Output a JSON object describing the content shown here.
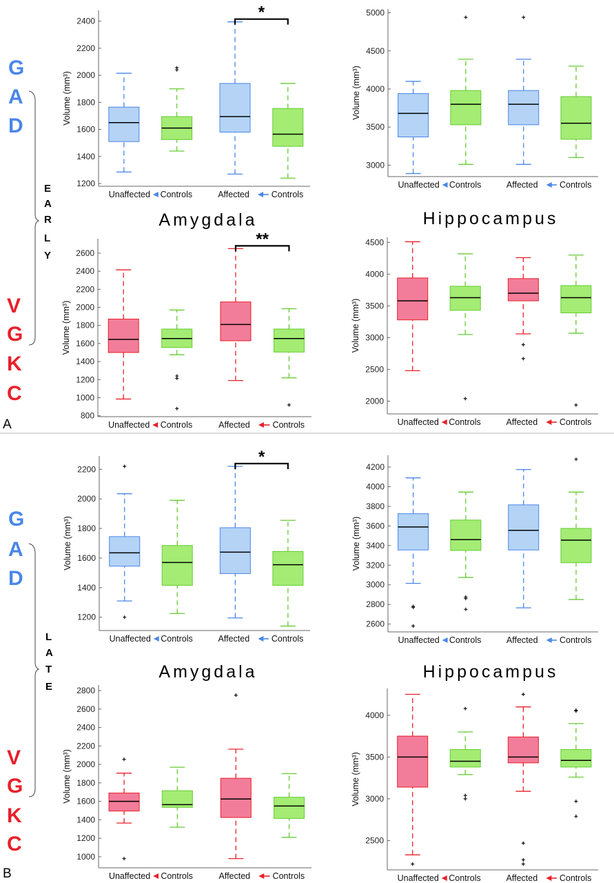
{
  "colors": {
    "gad": "#4a86e8",
    "vgkc": "#e8202a",
    "blue_fill": "#b4d3f5",
    "blue_stroke": "#4a86e8",
    "green_fill": "#a4ec74",
    "green_stroke": "#66cc33",
    "red_fill": "#f27d9a",
    "red_stroke": "#e8202a"
  },
  "labels": {
    "gad_letters": [
      "G",
      "A",
      "D"
    ],
    "vgkc_letters": [
      "V",
      "G",
      "K",
      "C"
    ],
    "early_letters": [
      "E",
      "A",
      "R",
      "L",
      "Y"
    ],
    "late_letters": [
      "L",
      "A",
      "T",
      "E"
    ],
    "panel_a": "A",
    "panel_b": "B",
    "amygdala": "Amygdala",
    "hippocampus": "Hippocampus"
  },
  "chart_data": [
    {
      "id": "early-gad-amygdala",
      "type": "box",
      "ylabel": "Volume (mm³)",
      "ylim": [
        1180,
        2480
      ],
      "yticks": [
        1200,
        1400,
        1600,
        1800,
        2000,
        2200,
        2400
      ],
      "categories": [
        "Unaffected",
        "Controls",
        "Affected",
        "Controls"
      ],
      "arrow_color": "gad",
      "boxes": [
        {
          "min": 1285,
          "q1": 1510,
          "median": 1650,
          "q3": 1765,
          "max": 2015,
          "outliers": [],
          "color": "blue"
        },
        {
          "min": 1440,
          "q1": 1525,
          "median": 1610,
          "q3": 1695,
          "max": 1900,
          "outliers": [
            2040,
            2055
          ],
          "color": "green"
        },
        {
          "min": 1270,
          "q1": 1580,
          "median": 1695,
          "q3": 1940,
          "max": 2395,
          "outliers": [],
          "color": "blue"
        },
        {
          "min": 1240,
          "q1": 1475,
          "median": 1565,
          "q3": 1755,
          "max": 1940,
          "outliers": [],
          "color": "green"
        }
      ],
      "significance": "*"
    },
    {
      "id": "early-gad-hippocampus",
      "type": "box",
      "ylabel": "Volume (mm³)",
      "ylim": [
        2850,
        5050
      ],
      "yticks": [
        3000,
        3500,
        4000,
        4500,
        5000
      ],
      "categories": [
        "Unaffected",
        "Controls",
        "Affected",
        "Controls"
      ],
      "arrow_color": "gad",
      "boxes": [
        {
          "min": 2890,
          "q1": 3370,
          "median": 3680,
          "q3": 3940,
          "max": 4100,
          "outliers": [],
          "color": "blue"
        },
        {
          "min": 3010,
          "q1": 3530,
          "median": 3800,
          "q3": 3980,
          "max": 4390,
          "outliers": [
            4940
          ],
          "color": "green"
        },
        {
          "min": 3010,
          "q1": 3530,
          "median": 3800,
          "q3": 3980,
          "max": 4390,
          "outliers": [
            4940
          ],
          "color": "blue"
        },
        {
          "min": 3100,
          "q1": 3340,
          "median": 3550,
          "q3": 3900,
          "max": 4300,
          "outliers": [],
          "color": "green"
        }
      ],
      "significance": ""
    },
    {
      "id": "early-vgkc-amygdala",
      "type": "box",
      "ylabel": "Volume (mm³)",
      "ylim": [
        790,
        2760
      ],
      "yticks": [
        800,
        1000,
        1200,
        1400,
        1600,
        1800,
        2000,
        2200,
        2400,
        2600
      ],
      "categories": [
        "Unaffected",
        "Controls",
        "Affected",
        "Controls"
      ],
      "arrow_color": "vgkc",
      "boxes": [
        {
          "min": 985,
          "q1": 1500,
          "median": 1645,
          "q3": 1870,
          "max": 2415,
          "outliers": [],
          "color": "red"
        },
        {
          "min": 1475,
          "q1": 1555,
          "median": 1655,
          "q3": 1760,
          "max": 1970,
          "outliers": [
            880,
            1215,
            1240
          ],
          "color": "green"
        },
        {
          "min": 1190,
          "q1": 1630,
          "median": 1810,
          "q3": 2060,
          "max": 2650,
          "outliers": [],
          "color": "red"
        },
        {
          "min": 1220,
          "q1": 1505,
          "median": 1655,
          "q3": 1760,
          "max": 1985,
          "outliers": [
            920
          ],
          "color": "green"
        }
      ],
      "significance": "**"
    },
    {
      "id": "early-vgkc-hippocampus",
      "type": "box",
      "ylabel": "Volume (mm³)",
      "ylim": [
        1800,
        4580
      ],
      "yticks": [
        2000,
        2500,
        3000,
        3500,
        4000,
        4500
      ],
      "categories": [
        "Unaffected",
        "Controls",
        "Affected",
        "Controls"
      ],
      "arrow_color": "vgkc",
      "boxes": [
        {
          "min": 2480,
          "q1": 3280,
          "median": 3580,
          "q3": 3940,
          "max": 4510,
          "outliers": [],
          "color": "red"
        },
        {
          "min": 3050,
          "q1": 3430,
          "median": 3630,
          "q3": 3810,
          "max": 4320,
          "outliers": [
            2040
          ],
          "color": "green"
        },
        {
          "min": 3060,
          "q1": 3580,
          "median": 3700,
          "q3": 3930,
          "max": 4260,
          "outliers": [
            2670,
            2890
          ],
          "color": "red"
        },
        {
          "min": 3070,
          "q1": 3390,
          "median": 3630,
          "q3": 3820,
          "max": 4300,
          "outliers": [
            1940
          ],
          "color": "green"
        }
      ],
      "significance": ""
    },
    {
      "id": "late-gad-amygdala",
      "type": "box",
      "ylabel": "Volume (mm³)",
      "ylim": [
        1110,
        2290
      ],
      "yticks": [
        1200,
        1400,
        1600,
        1800,
        2000,
        2200
      ],
      "categories": [
        "Unaffected",
        "Controls",
        "Affected",
        "Controls"
      ],
      "arrow_color": "gad",
      "boxes": [
        {
          "min": 1310,
          "q1": 1545,
          "median": 1635,
          "q3": 1745,
          "max": 2035,
          "outliers": [
            1200,
            2220
          ],
          "color": "blue"
        },
        {
          "min": 1225,
          "q1": 1415,
          "median": 1570,
          "q3": 1685,
          "max": 1990,
          "outliers": [],
          "color": "green"
        },
        {
          "min": 1195,
          "q1": 1495,
          "median": 1640,
          "q3": 1805,
          "max": 2220,
          "outliers": [],
          "color": "blue"
        },
        {
          "min": 1140,
          "q1": 1415,
          "median": 1555,
          "q3": 1645,
          "max": 1855,
          "outliers": [],
          "color": "green"
        }
      ],
      "significance": "*"
    },
    {
      "id": "late-gad-hippocampus",
      "type": "box",
      "ylabel": "Volume (mm³)",
      "ylim": [
        2520,
        4320
      ],
      "yticks": [
        2600,
        2800,
        3000,
        3200,
        3400,
        3600,
        3800,
        4000,
        4200
      ],
      "categories": [
        "Unaffected",
        "Controls",
        "Affected",
        "Controls"
      ],
      "arrow_color": "gad",
      "boxes": [
        {
          "min": 3015,
          "q1": 3355,
          "median": 3590,
          "q3": 3725,
          "max": 4090,
          "outliers": [
            2580,
            2770,
            2780
          ],
          "color": "blue"
        },
        {
          "min": 3075,
          "q1": 3350,
          "median": 3460,
          "q3": 3660,
          "max": 3945,
          "outliers": [
            2750,
            2860,
            2875
          ],
          "color": "green"
        },
        {
          "min": 2765,
          "q1": 3355,
          "median": 3555,
          "q3": 3815,
          "max": 4175,
          "outliers": [],
          "color": "blue"
        },
        {
          "min": 2850,
          "q1": 3225,
          "median": 3455,
          "q3": 3575,
          "max": 3945,
          "outliers": [
            4280
          ],
          "color": "green"
        }
      ],
      "significance": ""
    },
    {
      "id": "late-vgkc-amygdala",
      "type": "box",
      "ylabel": "Volume (mm³)",
      "ylim": [
        880,
        2860
      ],
      "yticks": [
        1000,
        1200,
        1400,
        1600,
        1800,
        2000,
        2200,
        2400,
        2600,
        2800
      ],
      "categories": [
        "Unaffected",
        "Controls",
        "Affected",
        "Controls"
      ],
      "arrow_color": "vgkc",
      "boxes": [
        {
          "min": 1365,
          "q1": 1495,
          "median": 1600,
          "q3": 1690,
          "max": 1905,
          "outliers": [
            980,
            2055
          ],
          "color": "red"
        },
        {
          "min": 1320,
          "q1": 1535,
          "median": 1565,
          "q3": 1715,
          "max": 1970,
          "outliers": [],
          "color": "green"
        },
        {
          "min": 980,
          "q1": 1425,
          "median": 1625,
          "q3": 1850,
          "max": 2165,
          "outliers": [
            2750
          ],
          "color": "red"
        },
        {
          "min": 1210,
          "q1": 1415,
          "median": 1550,
          "q3": 1645,
          "max": 1900,
          "outliers": [],
          "color": "green"
        }
      ],
      "significance": ""
    },
    {
      "id": "late-vgkc-hippocampus",
      "type": "box",
      "ylabel": "Volume (mm³)",
      "ylim": [
        2150,
        4320
      ],
      "yticks": [
        2500,
        3000,
        3500,
        4000
      ],
      "categories": [
        "Unaffected",
        "Controls",
        "Affected",
        "Controls"
      ],
      "arrow_color": "vgkc",
      "boxes": [
        {
          "min": 2330,
          "q1": 3140,
          "median": 3500,
          "q3": 3750,
          "max": 4250,
          "outliers": [
            2220
          ],
          "color": "red"
        },
        {
          "min": 3290,
          "q1": 3380,
          "median": 3450,
          "q3": 3590,
          "max": 3800,
          "outliers": [
            3000,
            3040,
            4080
          ],
          "color": "green"
        },
        {
          "min": 3090,
          "q1": 3430,
          "median": 3500,
          "q3": 3740,
          "max": 4100,
          "outliers": [
            2220,
            2270,
            2470,
            4250
          ],
          "color": "red"
        },
        {
          "min": 3260,
          "q1": 3380,
          "median": 3460,
          "q3": 3590,
          "max": 3900,
          "outliers": [
            2790,
            2970,
            4050,
            4060
          ],
          "color": "green"
        }
      ],
      "significance": ""
    }
  ]
}
